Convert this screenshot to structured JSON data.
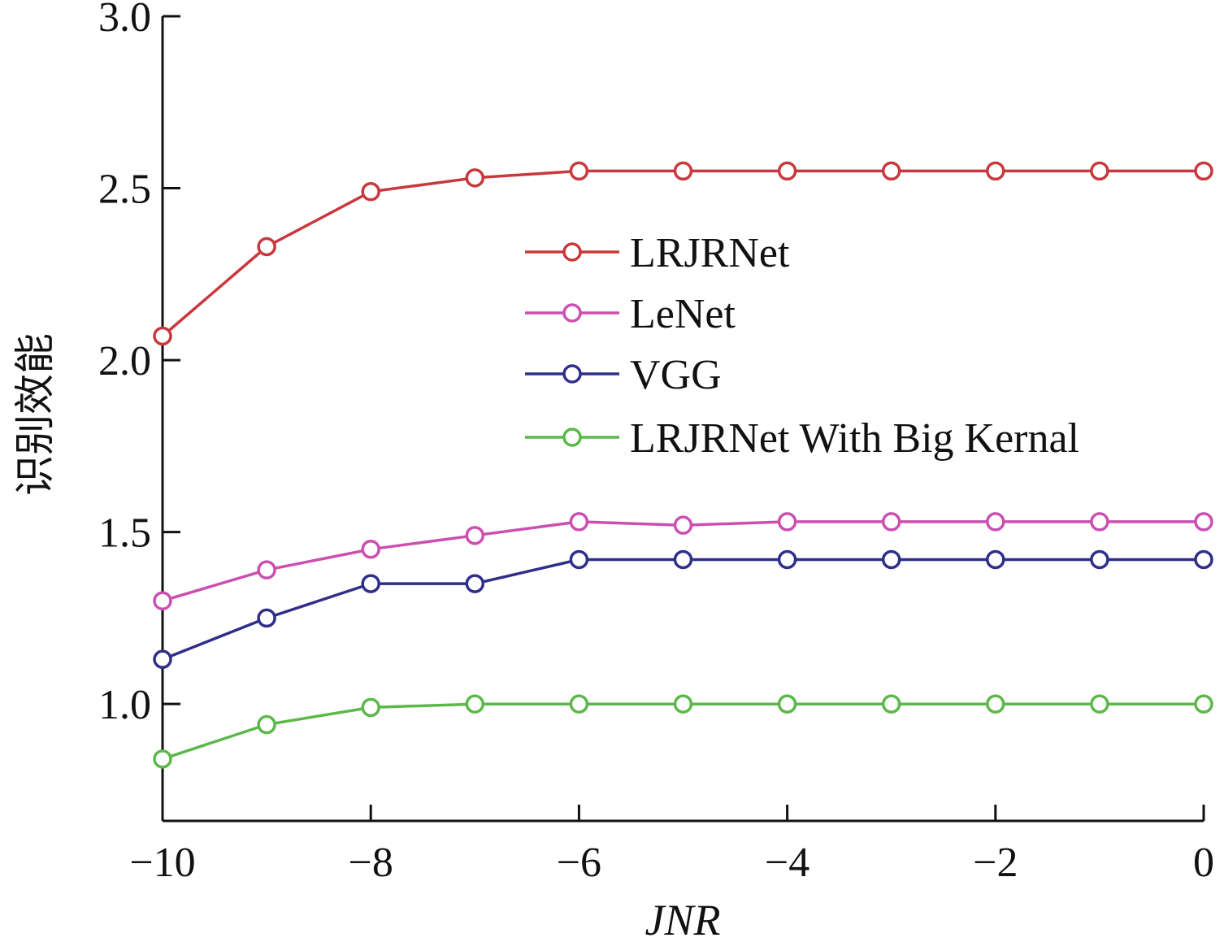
{
  "chart_data": {
    "type": "line",
    "title": "",
    "xlabel": "JNR",
    "ylabel": "识别效能",
    "xlim": [
      -10,
      0
    ],
    "ylim": [
      0.66,
      3.0
    ],
    "x_ticks": [
      -10,
      -8,
      -6,
      -4,
      -2,
      0
    ],
    "x_tick_labels": [
      "−10",
      "−8",
      "−6",
      "−4",
      "−2",
      "0"
    ],
    "y_ticks": [
      1.0,
      1.5,
      2.0,
      2.5,
      3.0
    ],
    "y_tick_labels": [
      "1.0",
      "1.5",
      "2.0",
      "2.5",
      "3.0"
    ],
    "grid": false,
    "legend_position": "center-right",
    "x": [
      -10,
      -9,
      -8,
      -7,
      -6,
      -5,
      -4,
      -3,
      -2,
      -1,
      0
    ],
    "series": [
      {
        "name": "LRJRNet",
        "color": "#c8383c",
        "marker": "open-circle",
        "values": [
          2.07,
          2.33,
          2.49,
          2.53,
          2.55,
          2.55,
          2.55,
          2.55,
          2.55,
          2.55,
          2.55
        ]
      },
      {
        "name": "LeNet",
        "color": "#cc4fb0",
        "marker": "open-circle",
        "values": [
          1.3,
          1.39,
          1.45,
          1.49,
          1.53,
          1.52,
          1.53,
          1.53,
          1.53,
          1.53,
          1.53
        ]
      },
      {
        "name": "VGG",
        "color": "#2f2f8a",
        "marker": "open-circle",
        "values": [
          1.13,
          1.25,
          1.35,
          1.35,
          1.42,
          1.42,
          1.42,
          1.42,
          1.42,
          1.42,
          1.42
        ]
      },
      {
        "name": "LRJRNet With Big Kernal",
        "color": "#5cb84a",
        "marker": "open-circle",
        "values": [
          0.84,
          0.94,
          0.99,
          1.0,
          1.0,
          1.0,
          1.0,
          1.0,
          1.0,
          1.0,
          1.0
        ]
      }
    ]
  }
}
